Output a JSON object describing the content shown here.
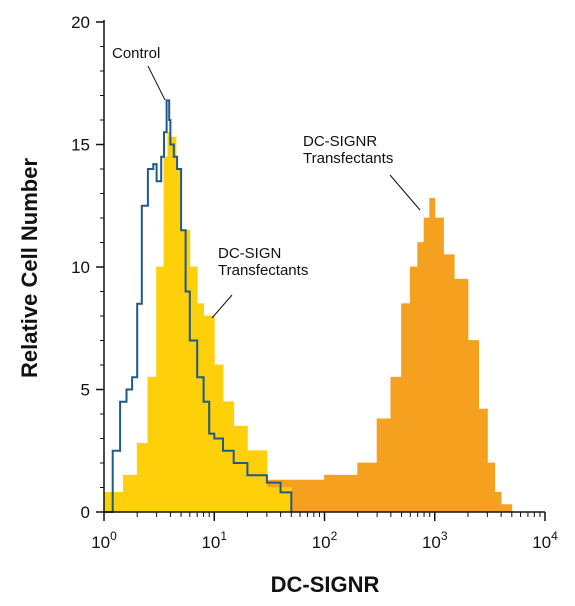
{
  "chart_data": {
    "type": "area",
    "title": "",
    "xlabel": "DC-SIGNR",
    "ylabel": "Relative Cell Number",
    "x_scale": "log",
    "xlim": [
      1,
      10000
    ],
    "ylim": [
      0,
      20
    ],
    "x_ticks": [
      {
        "value": 1,
        "base": "10",
        "exp": "0"
      },
      {
        "value": 10,
        "base": "10",
        "exp": "1"
      },
      {
        "value": 100,
        "base": "10",
        "exp": "2"
      },
      {
        "value": 1000,
        "base": "10",
        "exp": "3"
      },
      {
        "value": 10000,
        "base": "10",
        "exp": "4"
      }
    ],
    "y_ticks": [
      "0",
      "5",
      "10",
      "15",
      "20"
    ],
    "grid": false,
    "legend": "none",
    "series": [
      {
        "color": "#f5a01f",
        "style": "filled-histogram",
        "x": [
          2,
          3,
          5,
          8,
          10,
          15,
          20,
          30,
          50,
          80,
          100,
          150,
          200,
          300,
          400,
          500,
          600,
          700,
          800,
          900,
          1000,
          1200,
          1500,
          2000,
          2500,
          3000,
          3500,
          4000,
          5000
        ],
        "y": [
          1.0,
          1.5,
          1.8,
          2.0,
          2.0,
          1.5,
          1.5,
          1.3,
          1.3,
          1.3,
          1.5,
          1.5,
          2.0,
          3.8,
          5.5,
          8.5,
          10.0,
          11.0,
          12.0,
          12.8,
          12.0,
          10.5,
          9.5,
          7.0,
          4.2,
          2.0,
          0.8,
          0.3,
          0.0
        ]
      },
      {
        "color": "#fdd00a",
        "style": "filled-histogram",
        "x": [
          1.0,
          1.5,
          2.0,
          2.5,
          3.0,
          3.5,
          3.8,
          4.0,
          4.5,
          5.0,
          6.0,
          7.0,
          8.0,
          10.0,
          12.0,
          15.0,
          20.0,
          30.0,
          50.0
        ],
        "y": [
          0.8,
          1.5,
          2.8,
          5.5,
          10.0,
          14.5,
          15.5,
          15.3,
          14.0,
          11.5,
          10.0,
          8.5,
          8.0,
          6.0,
          4.5,
          3.5,
          2.5,
          1.0,
          0.3
        ]
      },
      {
        "color": "#1f5a8a",
        "style": "outline-histogram",
        "x": [
          1.0,
          1.2,
          1.4,
          1.6,
          1.8,
          2.0,
          2.2,
          2.5,
          2.8,
          3.0,
          3.3,
          3.5,
          3.7,
          3.9,
          4.0,
          4.3,
          4.6,
          5.0,
          5.5,
          6.0,
          7.0,
          8.0,
          9.0,
          10.0,
          12.0,
          15.0,
          20.0,
          30.0,
          40.0,
          50.0
        ],
        "y": [
          0.0,
          2.5,
          4.5,
          5.0,
          5.5,
          8.5,
          12.5,
          14.0,
          14.2,
          13.5,
          14.5,
          15.5,
          16.8,
          16.0,
          15.0,
          14.5,
          14.0,
          11.5,
          9.0,
          7.0,
          5.5,
          4.5,
          3.2,
          3.0,
          2.5,
          2.0,
          1.5,
          1.2,
          0.8,
          0.0
        ]
      }
    ],
    "annotations": [
      {
        "lines": [
          "Control"
        ],
        "x": 3.5,
        "y": 16.8
      },
      {
        "lines": [
          "DC-SIGN",
          "Transfectants"
        ],
        "x": 7.0,
        "y": 8.0
      },
      {
        "lines": [
          "DC-SIGNR",
          "Transfectants"
        ],
        "x": 800,
        "y": 12.0
      }
    ]
  }
}
